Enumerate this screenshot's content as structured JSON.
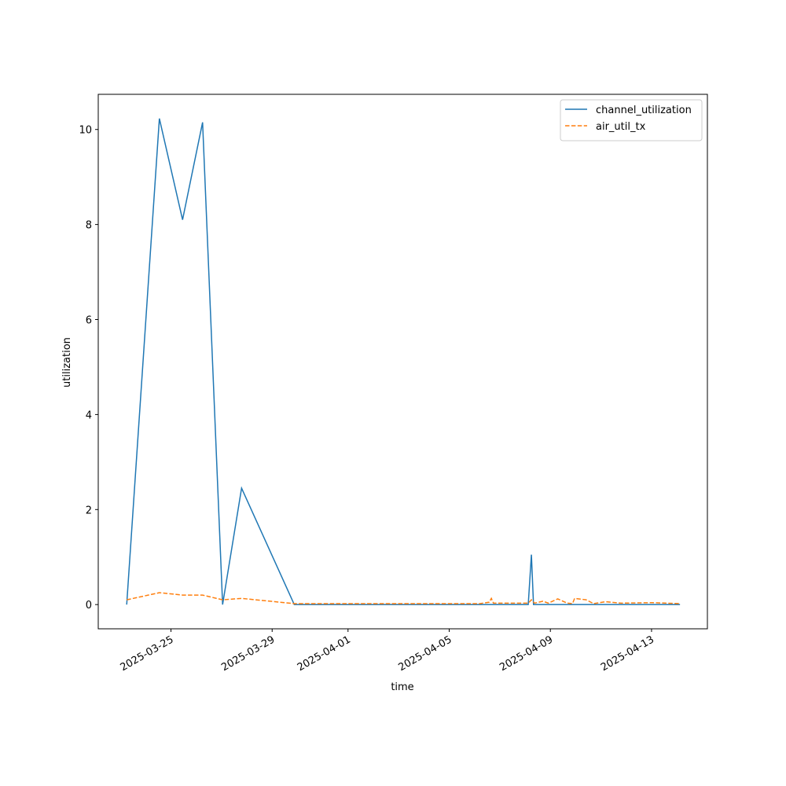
{
  "chart_data": {
    "type": "line",
    "xlabel": "time",
    "ylabel": "utilization",
    "legend": "upper right",
    "xlim": [
      "2025-03-22T03:00Z",
      "2025-04-15T05:00Z"
    ],
    "xticks": [
      "2025-03-25",
      "2025-03-29",
      "2025-04-01",
      "2025-04-05",
      "2025-04-09",
      "2025-04-13"
    ],
    "ylim": [
      -0.51,
      10.74
    ],
    "yticks": [
      0,
      2,
      4,
      6,
      8,
      10
    ],
    "series": [
      {
        "name": "channel_utilization",
        "color": "#1f77b4",
        "dash": false,
        "x": [
          "2025-03-23T06:00Z",
          "2025-03-24T13:00Z",
          "2025-03-25T11:00Z",
          "2025-03-26T06:00Z",
          "2025-03-27T01:00Z",
          "2025-03-27T19:00Z",
          "2025-03-29T21:00Z",
          "2025-04-08T03:00Z",
          "2025-04-08T06:00Z",
          "2025-04-08T08:00Z",
          "2025-04-14T03:00Z"
        ],
        "values": [
          0,
          10.23,
          8.1,
          10.15,
          0,
          2.45,
          0,
          0,
          1.05,
          0,
          0
        ]
      },
      {
        "name": "air_util_tx",
        "color": "#ff7f0e",
        "dash": true,
        "x": [
          "2025-03-23T06:00Z",
          "2025-03-24T13:00Z",
          "2025-03-25T11:00Z",
          "2025-03-26T06:00Z",
          "2025-03-27T01:00Z",
          "2025-03-27T19:00Z",
          "2025-03-29T21:00Z",
          "2025-04-06T05:00Z",
          "2025-04-06T14:00Z",
          "2025-04-06T16:00Z",
          "2025-04-06T18:00Z",
          "2025-04-08T03:00Z",
          "2025-04-08T06:00Z",
          "2025-04-08T09:00Z",
          "2025-04-08T17:00Z",
          "2025-04-08T22:00Z",
          "2025-04-09T07:00Z",
          "2025-04-09T16:00Z",
          "2025-04-09T21:00Z",
          "2025-04-09T23:00Z",
          "2025-04-10T10:00Z",
          "2025-04-10T17:00Z",
          "2025-04-11T04:00Z",
          "2025-04-11T19:00Z",
          "2025-04-13T01:00Z",
          "2025-04-14T03:00Z"
        ],
        "values": [
          0.1,
          0.25,
          0.2,
          0.2,
          0.1,
          0.13,
          0.02,
          0.02,
          0.05,
          0.13,
          0.03,
          0.03,
          0.1,
          0.03,
          0.07,
          0.03,
          0.12,
          0.03,
          0.02,
          0.13,
          0.1,
          0.02,
          0.06,
          0.03,
          0.04,
          0.02
        ]
      }
    ]
  }
}
